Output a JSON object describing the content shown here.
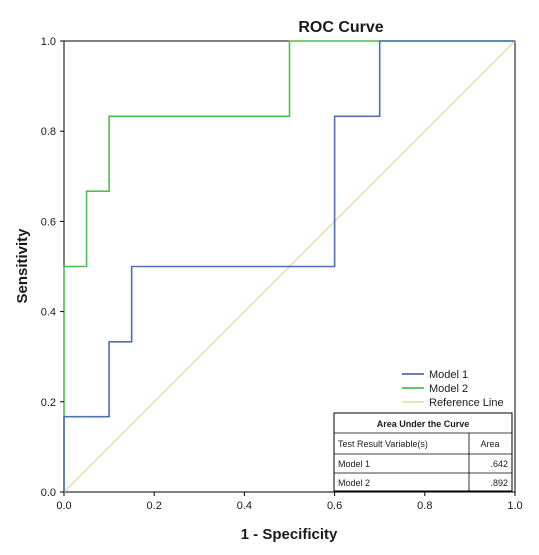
{
  "chart_data": {
    "type": "line",
    "title": "ROC Curve",
    "xlabel": "1 - Specificity",
    "ylabel": "Sensitivity",
    "xlim": [
      0,
      1
    ],
    "ylim": [
      0,
      1
    ],
    "x_ticks": [
      "0.0",
      "0.2",
      "0.4",
      "0.6",
      "0.8",
      "1.0"
    ],
    "y_ticks": [
      "0.0",
      "0.2",
      "0.4",
      "0.6",
      "0.8",
      "1.0"
    ],
    "grid": false,
    "legend_position": "bottom-right",
    "series": [
      {
        "name": "Model 1",
        "color": "#4f6fb5",
        "x": [
          0,
          0,
          0.1,
          0.1,
          0.15,
          0.15,
          0.6,
          0.6,
          0.7,
          0.7,
          1.0
        ],
        "y": [
          0,
          0.167,
          0.167,
          0.333,
          0.333,
          0.5,
          0.5,
          0.833,
          0.833,
          1.0,
          1.0
        ]
      },
      {
        "name": "Model 2",
        "color": "#4cbf4c",
        "x": [
          0,
          0,
          0.05,
          0.05,
          0.1,
          0.1,
          0.5,
          0.5,
          1.0
        ],
        "y": [
          0,
          0.5,
          0.5,
          0.667,
          0.667,
          0.833,
          0.833,
          1.0,
          1.0
        ]
      },
      {
        "name": "Reference Line",
        "color": "#e6dfb0",
        "x": [
          0,
          1
        ],
        "y": [
          0,
          1
        ]
      }
    ],
    "auc_table": {
      "title": "Area Under the Curve",
      "headers": [
        "Test Result Variable(s)",
        "Area"
      ],
      "rows": [
        {
          "variable": "Model 1",
          "area": ".642"
        },
        {
          "variable": "Model 2",
          "area": ".892"
        }
      ]
    }
  }
}
